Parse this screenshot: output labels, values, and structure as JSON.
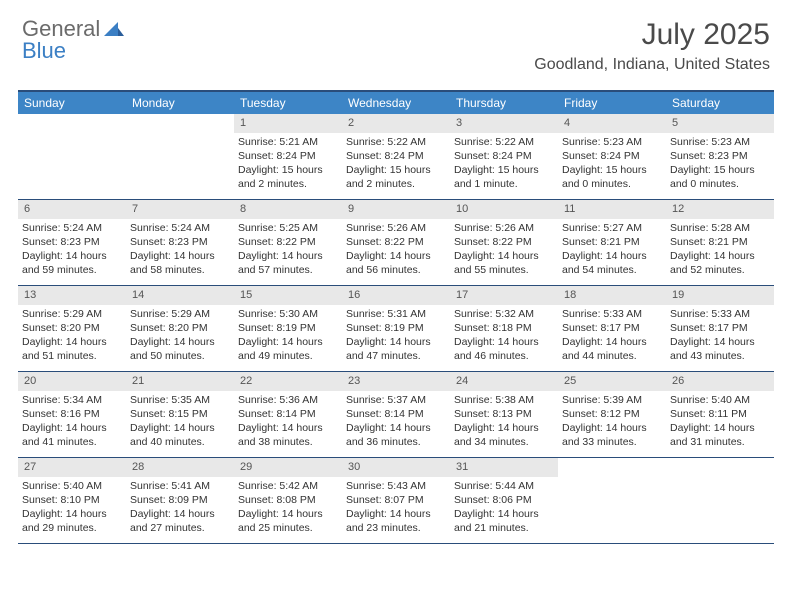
{
  "logo": {
    "part1": "General",
    "part2": "Blue"
  },
  "title": "July 2025",
  "location": "Goodland, Indiana, United States",
  "colors": {
    "header_bg": "#3d85c6",
    "header_text": "#ffffff",
    "border": "#2a4d7a",
    "daynum_bg": "#e8e8e8",
    "text": "#333333",
    "logo_gray": "#6b6b6b",
    "logo_blue": "#3b7fc4"
  },
  "typography": {
    "title_fontsize": 30,
    "location_fontsize": 16,
    "weekday_fontsize": 12,
    "cell_fontsize": 10.5
  },
  "layout": {
    "columns": 7,
    "leading_blanks": 2
  },
  "weekdays": [
    "Sunday",
    "Monday",
    "Tuesday",
    "Wednesday",
    "Thursday",
    "Friday",
    "Saturday"
  ],
  "days": [
    {
      "n": "1",
      "sunrise": "Sunrise: 5:21 AM",
      "sunset": "Sunset: 8:24 PM",
      "daylight": "Daylight: 15 hours and 2 minutes."
    },
    {
      "n": "2",
      "sunrise": "Sunrise: 5:22 AM",
      "sunset": "Sunset: 8:24 PM",
      "daylight": "Daylight: 15 hours and 2 minutes."
    },
    {
      "n": "3",
      "sunrise": "Sunrise: 5:22 AM",
      "sunset": "Sunset: 8:24 PM",
      "daylight": "Daylight: 15 hours and 1 minute."
    },
    {
      "n": "4",
      "sunrise": "Sunrise: 5:23 AM",
      "sunset": "Sunset: 8:24 PM",
      "daylight": "Daylight: 15 hours and 0 minutes."
    },
    {
      "n": "5",
      "sunrise": "Sunrise: 5:23 AM",
      "sunset": "Sunset: 8:23 PM",
      "daylight": "Daylight: 15 hours and 0 minutes."
    },
    {
      "n": "6",
      "sunrise": "Sunrise: 5:24 AM",
      "sunset": "Sunset: 8:23 PM",
      "daylight": "Daylight: 14 hours and 59 minutes."
    },
    {
      "n": "7",
      "sunrise": "Sunrise: 5:24 AM",
      "sunset": "Sunset: 8:23 PM",
      "daylight": "Daylight: 14 hours and 58 minutes."
    },
    {
      "n": "8",
      "sunrise": "Sunrise: 5:25 AM",
      "sunset": "Sunset: 8:22 PM",
      "daylight": "Daylight: 14 hours and 57 minutes."
    },
    {
      "n": "9",
      "sunrise": "Sunrise: 5:26 AM",
      "sunset": "Sunset: 8:22 PM",
      "daylight": "Daylight: 14 hours and 56 minutes."
    },
    {
      "n": "10",
      "sunrise": "Sunrise: 5:26 AM",
      "sunset": "Sunset: 8:22 PM",
      "daylight": "Daylight: 14 hours and 55 minutes."
    },
    {
      "n": "11",
      "sunrise": "Sunrise: 5:27 AM",
      "sunset": "Sunset: 8:21 PM",
      "daylight": "Daylight: 14 hours and 54 minutes."
    },
    {
      "n": "12",
      "sunrise": "Sunrise: 5:28 AM",
      "sunset": "Sunset: 8:21 PM",
      "daylight": "Daylight: 14 hours and 52 minutes."
    },
    {
      "n": "13",
      "sunrise": "Sunrise: 5:29 AM",
      "sunset": "Sunset: 8:20 PM",
      "daylight": "Daylight: 14 hours and 51 minutes."
    },
    {
      "n": "14",
      "sunrise": "Sunrise: 5:29 AM",
      "sunset": "Sunset: 8:20 PM",
      "daylight": "Daylight: 14 hours and 50 minutes."
    },
    {
      "n": "15",
      "sunrise": "Sunrise: 5:30 AM",
      "sunset": "Sunset: 8:19 PM",
      "daylight": "Daylight: 14 hours and 49 minutes."
    },
    {
      "n": "16",
      "sunrise": "Sunrise: 5:31 AM",
      "sunset": "Sunset: 8:19 PM",
      "daylight": "Daylight: 14 hours and 47 minutes."
    },
    {
      "n": "17",
      "sunrise": "Sunrise: 5:32 AM",
      "sunset": "Sunset: 8:18 PM",
      "daylight": "Daylight: 14 hours and 46 minutes."
    },
    {
      "n": "18",
      "sunrise": "Sunrise: 5:33 AM",
      "sunset": "Sunset: 8:17 PM",
      "daylight": "Daylight: 14 hours and 44 minutes."
    },
    {
      "n": "19",
      "sunrise": "Sunrise: 5:33 AM",
      "sunset": "Sunset: 8:17 PM",
      "daylight": "Daylight: 14 hours and 43 minutes."
    },
    {
      "n": "20",
      "sunrise": "Sunrise: 5:34 AM",
      "sunset": "Sunset: 8:16 PM",
      "daylight": "Daylight: 14 hours and 41 minutes."
    },
    {
      "n": "21",
      "sunrise": "Sunrise: 5:35 AM",
      "sunset": "Sunset: 8:15 PM",
      "daylight": "Daylight: 14 hours and 40 minutes."
    },
    {
      "n": "22",
      "sunrise": "Sunrise: 5:36 AM",
      "sunset": "Sunset: 8:14 PM",
      "daylight": "Daylight: 14 hours and 38 minutes."
    },
    {
      "n": "23",
      "sunrise": "Sunrise: 5:37 AM",
      "sunset": "Sunset: 8:14 PM",
      "daylight": "Daylight: 14 hours and 36 minutes."
    },
    {
      "n": "24",
      "sunrise": "Sunrise: 5:38 AM",
      "sunset": "Sunset: 8:13 PM",
      "daylight": "Daylight: 14 hours and 34 minutes."
    },
    {
      "n": "25",
      "sunrise": "Sunrise: 5:39 AM",
      "sunset": "Sunset: 8:12 PM",
      "daylight": "Daylight: 14 hours and 33 minutes."
    },
    {
      "n": "26",
      "sunrise": "Sunrise: 5:40 AM",
      "sunset": "Sunset: 8:11 PM",
      "daylight": "Daylight: 14 hours and 31 minutes."
    },
    {
      "n": "27",
      "sunrise": "Sunrise: 5:40 AM",
      "sunset": "Sunset: 8:10 PM",
      "daylight": "Daylight: 14 hours and 29 minutes."
    },
    {
      "n": "28",
      "sunrise": "Sunrise: 5:41 AM",
      "sunset": "Sunset: 8:09 PM",
      "daylight": "Daylight: 14 hours and 27 minutes."
    },
    {
      "n": "29",
      "sunrise": "Sunrise: 5:42 AM",
      "sunset": "Sunset: 8:08 PM",
      "daylight": "Daylight: 14 hours and 25 minutes."
    },
    {
      "n": "30",
      "sunrise": "Sunrise: 5:43 AM",
      "sunset": "Sunset: 8:07 PM",
      "daylight": "Daylight: 14 hours and 23 minutes."
    },
    {
      "n": "31",
      "sunrise": "Sunrise: 5:44 AM",
      "sunset": "Sunset: 8:06 PM",
      "daylight": "Daylight: 14 hours and 21 minutes."
    }
  ]
}
